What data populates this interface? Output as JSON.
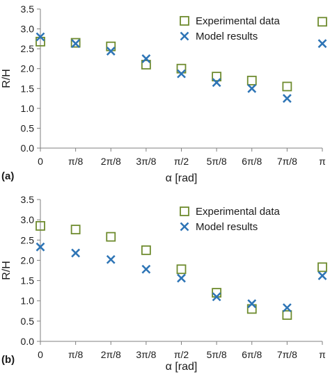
{
  "colors": {
    "experimental": "#6e8b2e",
    "model": "#2e75b6",
    "axis": "#7f7f7f"
  },
  "chart_data": [
    {
      "type": "scatter",
      "panel_label": "(a)",
      "xlabel": "α [rad]",
      "ylabel": "R/H",
      "xlim": [
        0,
        3.14159
      ],
      "ylim": [
        0,
        3.5
      ],
      "yticks": [
        "0.0",
        "0.5",
        "1.0",
        "1.5",
        "2.0",
        "2.5",
        "3.0",
        "3.5"
      ],
      "xtick_labels": [
        "0",
        "π/8",
        "2π/8",
        "3π/8",
        "π/2",
        "5π/8",
        "6π/8",
        "7π/8",
        "π"
      ],
      "x": [
        0,
        0.3927,
        0.7854,
        1.1781,
        1.5708,
        1.9635,
        2.3562,
        2.7489,
        3.1416
      ],
      "grid": false,
      "legend_position": "top-right",
      "series": [
        {
          "name": "Experimental data",
          "marker": "square",
          "values": [
            2.68,
            2.65,
            2.56,
            2.1,
            2.0,
            1.8,
            1.7,
            1.55,
            3.18
          ]
        },
        {
          "name": "Model results",
          "marker": "x",
          "values": [
            2.8,
            2.63,
            2.44,
            2.25,
            1.87,
            1.65,
            1.5,
            1.25,
            2.63
          ]
        }
      ]
    },
    {
      "type": "scatter",
      "panel_label": "(b)",
      "xlabel": "α [rad]",
      "ylabel": "R/H",
      "xlim": [
        0,
        3.14159
      ],
      "ylim": [
        0,
        3.5
      ],
      "yticks": [
        "0.0",
        "0.5",
        "1.0",
        "1.5",
        "2.0",
        "2.5",
        "3.0",
        "3.5"
      ],
      "xtick_labels": [
        "0",
        "π/8",
        "2π/8",
        "3π/8",
        "π/2",
        "5π/8",
        "6π/8",
        "7π/8",
        "π"
      ],
      "x": [
        0,
        0.3927,
        0.7854,
        1.1781,
        1.5708,
        1.9635,
        2.3562,
        2.7489,
        3.1416
      ],
      "grid": false,
      "legend_position": "top-right",
      "series": [
        {
          "name": "Experimental data",
          "marker": "square",
          "values": [
            2.85,
            2.76,
            2.58,
            2.25,
            1.78,
            1.2,
            0.8,
            0.65,
            1.83
          ]
        },
        {
          "name": "Model results",
          "marker": "x",
          "values": [
            2.33,
            2.18,
            2.02,
            1.78,
            1.56,
            1.1,
            0.93,
            0.83,
            1.62
          ]
        }
      ]
    }
  ]
}
